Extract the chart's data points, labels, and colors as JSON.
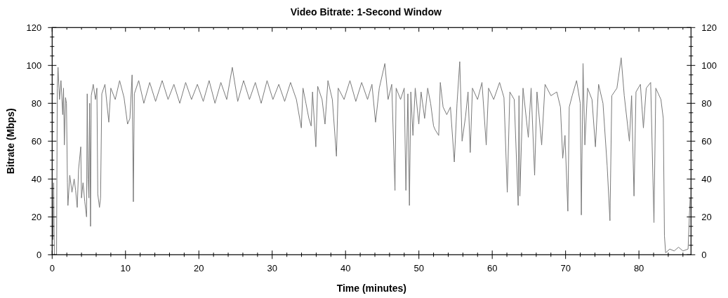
{
  "chart_data": {
    "type": "line",
    "title": "Video Bitrate: 1-Second Window",
    "xlabel": "Time (minutes)",
    "ylabel": "Bitrate (Mbps)",
    "xlim": [
      0,
      87.1
    ],
    "xticks": [
      0,
      {
        "value": 2,
        "label": null
      },
      {
        "value": 4,
        "label": null
      },
      {
        "value": 6,
        "label": null
      },
      {
        "value": 8,
        "label": null
      },
      10,
      {
        "value": 12,
        "label": null
      },
      {
        "value": 14,
        "label": null
      },
      {
        "value": 16,
        "label": null
      },
      {
        "value": 18,
        "label": null
      },
      20,
      {
        "value": 22,
        "label": null
      },
      {
        "value": 24,
        "label": null
      },
      {
        "value": 26,
        "label": null
      },
      {
        "value": 28,
        "label": null
      },
      30,
      {
        "value": 32,
        "label": null
      },
      {
        "value": 34,
        "label": null
      },
      {
        "value": 36,
        "label": null
      },
      {
        "value": 38,
        "label": null
      },
      40,
      {
        "value": 42,
        "label": null
      },
      {
        "value": 44,
        "label": null
      },
      {
        "value": 46,
        "label": null
      },
      {
        "value": 48,
        "label": null
      },
      50,
      {
        "value": 52,
        "label": null
      },
      {
        "value": 54,
        "label": null
      },
      {
        "value": 56,
        "label": null
      },
      {
        "value": 58,
        "label": null
      },
      60,
      {
        "value": 62,
        "label": null
      },
      {
        "value": 64,
        "label": null
      },
      {
        "value": 66,
        "label": null
      },
      {
        "value": 68,
        "label": null
      },
      70,
      {
        "value": 72,
        "label": null
      },
      {
        "value": 74,
        "label": null
      },
      {
        "value": 76,
        "label": null
      },
      {
        "value": 78,
        "label": null
      },
      80,
      {
        "value": 82,
        "label": null
      },
      {
        "value": 84,
        "label": null
      },
      {
        "value": 86,
        "label": null
      }
    ],
    "ylim": [
      0,
      120
    ],
    "yticks": [
      0,
      {
        "value": 5,
        "label": null
      },
      {
        "value": 10,
        "label": null
      },
      {
        "value": 15,
        "label": null
      },
      20,
      {
        "value": 25,
        "label": null
      },
      {
        "value": 30,
        "label": null
      },
      {
        "value": 35,
        "label": null
      },
      40,
      {
        "value": 45,
        "label": null
      },
      {
        "value": 50,
        "label": null
      },
      {
        "value": 55,
        "label": null
      },
      60,
      {
        "value": 65,
        "label": null
      },
      {
        "value": 70,
        "label": null
      },
      {
        "value": 75,
        "label": null
      },
      80,
      {
        "value": 85,
        "label": null
      },
      {
        "value": 90,
        "label": null
      },
      {
        "value": 95,
        "label": null
      },
      100,
      {
        "value": 105,
        "label": null
      },
      {
        "value": 110,
        "label": null
      },
      {
        "value": 115,
        "label": null
      },
      120
    ],
    "y2lim": [
      0,
      120
    ],
    "y2ticks": [
      0,
      {
        "value": 5,
        "label": null
      },
      {
        "value": 10,
        "label": null
      },
      {
        "value": 15,
        "label": null
      },
      20,
      {
        "value": 25,
        "label": null
      },
      {
        "value": 30,
        "label": null
      },
      {
        "value": 35,
        "label": null
      },
      40,
      {
        "value": 45,
        "label": null
      },
      {
        "value": 50,
        "label": null
      },
      {
        "value": 55,
        "label": null
      },
      60,
      {
        "value": 65,
        "label": null
      },
      {
        "value": 70,
        "label": null
      },
      {
        "value": 75,
        "label": null
      },
      80,
      {
        "value": 85,
        "label": null
      },
      {
        "value": 90,
        "label": null
      },
      {
        "value": 95,
        "label": null
      },
      100,
      {
        "value": 105,
        "label": null
      },
      {
        "value": 110,
        "label": null
      },
      {
        "value": 115,
        "label": null
      },
      120
    ],
    "x": [
      0,
      0.1,
      0.2,
      0.3,
      0.6,
      0.7,
      0.8,
      1.0,
      1.2,
      1.44,
      1.55,
      1.66,
      1.82,
      1.95,
      2.08,
      2.15,
      2.4,
      2.7,
      3.0,
      3.2,
      3.42,
      3.6,
      3.9,
      4.0,
      4.21,
      4.45,
      4.69,
      4.78,
      4.9,
      5.01,
      5.11,
      5.23,
      5.33,
      5.6,
      5.9,
      6.1,
      6.22,
      6.45,
      6.6,
      6.77,
      7.2,
      7.72,
      8.0,
      8.6,
      9.2,
      9.8,
      10.28,
      10.6,
      10.9,
      11.07,
      11.2,
      11.8,
      12.5,
      13.3,
      14.1,
      15.0,
      15.8,
      16.6,
      17.4,
      18.2,
      19.0,
      19.8,
      20.6,
      21.4,
      22.2,
      23.0,
      23.8,
      24.56,
      25.3,
      26.1,
      26.9,
      27.7,
      28.5,
      29.3,
      30.1,
      30.9,
      31.7,
      32.5,
      33.3,
      33.97,
      34.2,
      34.6,
      35.0,
      35.31,
      35.5,
      35.95,
      36.2,
      36.8,
      37.2,
      37.6,
      38.2,
      38.76,
      39.0,
      39.8,
      40.6,
      41.4,
      42.2,
      43.0,
      43.6,
      44.09,
      44.6,
      45.36,
      45.8,
      46.3,
      46.74,
      46.9,
      47.5,
      48.0,
      48.23,
      48.5,
      48.71,
      48.9,
      49.19,
      49.5,
      49.99,
      50.3,
      50.78,
      51.2,
      51.6,
      52.0,
      52.22,
      52.7,
      52.92,
      53.3,
      53.8,
      54.3,
      54.83,
      55.2,
      55.57,
      55.89,
      56.36,
      56.7,
      57.0,
      57.3,
      58.0,
      58.6,
      59.18,
      59.5,
      60.2,
      61.0,
      61.6,
      62.05,
      62.4,
      63.0,
      63.54,
      63.65,
      63.77,
      64.2,
      64.92,
      65.3,
      65.78,
      66.1,
      66.74,
      67.2,
      68.0,
      68.8,
      69.3,
      69.61,
      69.92,
      70.31,
      70.5,
      70.9,
      71.5,
      72.0,
      72.15,
      72.38,
      72.63,
      73.0,
      73.6,
      74.07,
      74.5,
      75.1,
      75.67,
      76.05,
      76.3,
      77.0,
      77.58,
      78.0,
      78.7,
      79.0,
      79.33,
      79.6,
      80.2,
      80.61,
      81.0,
      81.6,
      82.05,
      82.3,
      83.0,
      83.32,
      83.48,
      83.64,
      84.2,
      84.8,
      85.4,
      86.0,
      86.7,
      86.98
    ],
    "series": [
      {
        "color": "#7a7a7a",
        "values": [
          38,
          8,
          38,
          0,
          0,
          88,
          99,
          82,
          92,
          74,
          88,
          58,
          83,
          80,
          38,
          26,
          42,
          33,
          40,
          34,
          25,
          45,
          57,
          30,
          38,
          28,
          20,
          85,
          40,
          30,
          80,
          15,
          84,
          90,
          82,
          88,
          32,
          25,
          30,
          85,
          90,
          70,
          88,
          82,
          92,
          83,
          69,
          72,
          95,
          28,
          85,
          92,
          80,
          91,
          81,
          92,
          82,
          90,
          80,
          91,
          82,
          90,
          81,
          92,
          80,
          91,
          82,
          99,
          81,
          92,
          82,
          91,
          80,
          92,
          82,
          90,
          81,
          91,
          82,
          67,
          88,
          80,
          72,
          68,
          86,
          57,
          89,
          82,
          69,
          92,
          82,
          52,
          88,
          82,
          92,
          81,
          91,
          82,
          90,
          70,
          88,
          101,
          82,
          90,
          34,
          88,
          82,
          88,
          34,
          85,
          26,
          86,
          63,
          88,
          69,
          86,
          72,
          88,
          80,
          68,
          66,
          63,
          91,
          78,
          74,
          78,
          49,
          80,
          102,
          60,
          73,
          86,
          54,
          88,
          82,
          91,
          58,
          88,
          82,
          91,
          83,
          33,
          86,
          82,
          26,
          84,
          31,
          88,
          62,
          88,
          42,
          86,
          58,
          90,
          84,
          86,
          78,
          51,
          63,
          23,
          78,
          84,
          92,
          80,
          21,
          101,
          58,
          88,
          82,
          57,
          90,
          80,
          47,
          18,
          84,
          88,
          104,
          84,
          60,
          84,
          31,
          86,
          90,
          67,
          88,
          91,
          17,
          88,
          82,
          72,
          10,
          1,
          3,
          2,
          4,
          2,
          3,
          30
        ]
      }
    ]
  }
}
